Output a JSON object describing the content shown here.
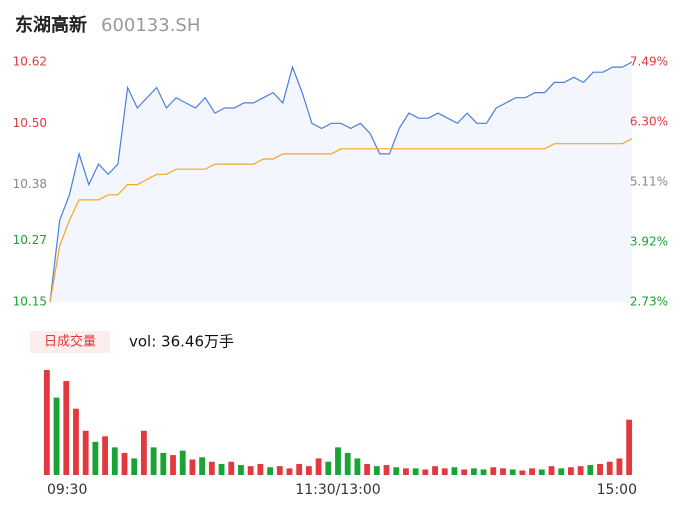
{
  "title": "东湖高新",
  "code": "600133.SH",
  "chart_data": [
    {
      "type": "line",
      "x": [
        0,
        4,
        8,
        12,
        16,
        20,
        24,
        28,
        32,
        36,
        40,
        44,
        48,
        52,
        56,
        60,
        64,
        68,
        72,
        76,
        80,
        84,
        88,
        92,
        96,
        100,
        104,
        108,
        112,
        116,
        120,
        124,
        128,
        132,
        136,
        140,
        144,
        148,
        152,
        156,
        160,
        164,
        168,
        172,
        176,
        180,
        184,
        188,
        192,
        196,
        200,
        204,
        208,
        212,
        216,
        220,
        224,
        228,
        232,
        236,
        240
      ],
      "xlim": [
        0,
        240
      ],
      "ylim": [
        10.15,
        10.62
      ],
      "yticks": [
        10.15,
        10.27,
        10.38,
        {
          "value": 10.5,
          "label": "10.50"
        },
        10.62
      ],
      "ytick_colors": [
        "#1aa334",
        "#1aa334",
        "#888888",
        "#e0393e",
        "#e0393e"
      ],
      "y2lim": [
        2.73,
        7.49
      ],
      "y2ticks": [
        {
          "value": 2.73,
          "label": "2.73%"
        },
        {
          "value": 3.92,
          "label": "3.92%"
        },
        {
          "value": 5.11,
          "label": "5.11%"
        },
        {
          "value": 6.3,
          "label": "6.30%"
        },
        {
          "value": 7.49,
          "label": "7.49%"
        }
      ],
      "fill": "#f3f6fc",
      "series": [
        {
          "color": "#4a7fe0",
          "values": [
            10.15,
            10.31,
            10.36,
            10.44,
            10.38,
            10.42,
            10.4,
            10.42,
            10.57,
            10.53,
            10.55,
            10.57,
            10.53,
            10.55,
            10.54,
            10.53,
            10.55,
            10.52,
            10.53,
            10.53,
            10.54,
            10.54,
            10.55,
            10.56,
            10.54,
            10.61,
            10.56,
            10.5,
            10.49,
            10.5,
            10.5,
            10.49,
            10.5,
            10.48,
            10.44,
            10.44,
            10.49,
            10.52,
            10.51,
            10.51,
            10.52,
            10.51,
            10.5,
            10.52,
            10.5,
            10.5,
            10.53,
            10.54,
            10.55,
            10.55,
            10.56,
            10.56,
            10.58,
            10.58,
            10.59,
            10.58,
            10.6,
            10.6,
            10.61,
            10.61,
            10.62
          ]
        },
        {
          "color": "#f5a623",
          "values": [
            10.15,
            10.26,
            10.31,
            10.35,
            10.35,
            10.35,
            10.36,
            10.36,
            10.38,
            10.38,
            10.39,
            10.4,
            10.4,
            10.41,
            10.41,
            10.41,
            10.41,
            10.42,
            10.42,
            10.42,
            10.42,
            10.42,
            10.43,
            10.43,
            10.44,
            10.44,
            10.44,
            10.44,
            10.44,
            10.44,
            10.45,
            10.45,
            10.45,
            10.45,
            10.45,
            10.45,
            10.45,
            10.45,
            10.45,
            10.45,
            10.45,
            10.45,
            10.45,
            10.45,
            10.45,
            10.45,
            10.45,
            10.45,
            10.45,
            10.45,
            10.45,
            10.45,
            10.46,
            10.46,
            10.46,
            10.46,
            10.46,
            10.46,
            10.46,
            10.46,
            10.47
          ]
        }
      ]
    },
    {
      "type": "bar",
      "label": "日成交量",
      "vol_label": "vol: 36.46万手",
      "xticks": [
        {
          "value": 0,
          "label": "09:30"
        },
        {
          "value": 120,
          "label": "11:30/13:00"
        },
        {
          "value": 240,
          "label": "15:00"
        }
      ],
      "xlim": [
        0,
        240
      ],
      "values": [
        95,
        70,
        85,
        60,
        40,
        30,
        35,
        25,
        20,
        15,
        40,
        25,
        20,
        18,
        22,
        14,
        16,
        12,
        10,
        12,
        9,
        8,
        10,
        7,
        8,
        6,
        10,
        8,
        15,
        12,
        25,
        20,
        15,
        10,
        8,
        9,
        7,
        6,
        6,
        5,
        8,
        6,
        7,
        5,
        6,
        5,
        7,
        6,
        5,
        4,
        6,
        5,
        8,
        6,
        7,
        8,
        9,
        10,
        12,
        15,
        50
      ],
      "colors": [
        "#e0393e",
        "#1aa334",
        "#e0393e",
        "#e0393e",
        "#e0393e",
        "#1aa334",
        "#e0393e",
        "#1aa334",
        "#e0393e",
        "#1aa334",
        "#e0393e",
        "#1aa334",
        "#1aa334",
        "#e0393e",
        "#1aa334",
        "#e0393e",
        "#1aa334",
        "#e0393e",
        "#1aa334",
        "#e0393e",
        "#1aa334",
        "#e0393e",
        "#e0393e",
        "#1aa334",
        "#e0393e",
        "#e0393e",
        "#e0393e",
        "#e0393e",
        "#e0393e",
        "#1aa334",
        "#1aa334",
        "#1aa334",
        "#1aa334",
        "#e0393e",
        "#1aa334",
        "#e0393e",
        "#1aa334",
        "#e0393e",
        "#1aa334",
        "#e0393e",
        "#e0393e",
        "#e0393e",
        "#1aa334",
        "#e0393e",
        "#1aa334",
        "#1aa334",
        "#e0393e",
        "#e0393e",
        "#1aa334",
        "#e0393e",
        "#e0393e",
        "#1aa334",
        "#e0393e",
        "#1aa334",
        "#e0393e",
        "#e0393e",
        "#1aa334",
        "#e0393e",
        "#e0393e",
        "#e0393e",
        "#e0393e"
      ]
    }
  ]
}
